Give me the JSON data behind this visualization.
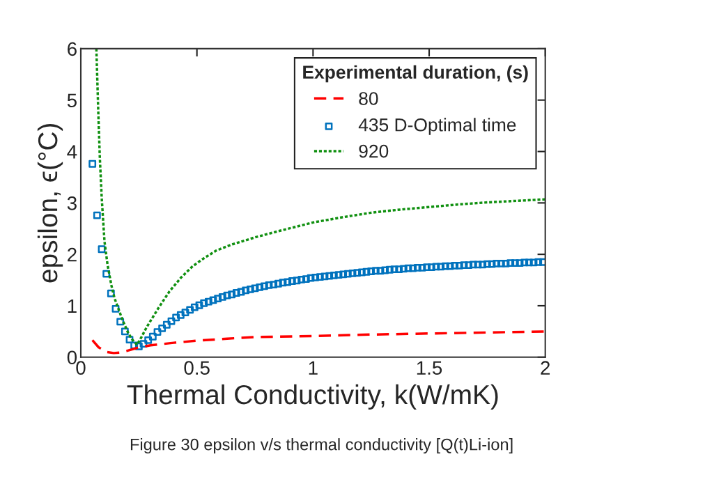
{
  "chart_data": {
    "type": "line",
    "xlabel": "Thermal Conductivity, k(W/mK)",
    "ylabel": "epsilon, ϵ(°C)",
    "legend_title": "Experimental duration, (s)",
    "legend": "top right",
    "grid": false,
    "xlim": [
      0,
      2
    ],
    "ylim": [
      0,
      6
    ],
    "xticks": [
      0,
      0.5,
      1,
      1.5,
      2
    ],
    "yticks": [
      0,
      1,
      2,
      3,
      4,
      5,
      6
    ],
    "series": [
      {
        "name": "80",
        "line_style": "dashed",
        "color": "#ff0000",
        "x": [
          0.05,
          0.077,
          0.112,
          0.142,
          0.17,
          0.197,
          0.242,
          0.3,
          0.4,
          0.5,
          0.63,
          0.75,
          1.0,
          1.25,
          1.5,
          1.75,
          2.0
        ],
        "values": [
          0.33,
          0.19,
          0.1,
          0.08,
          0.09,
          0.12,
          0.18,
          0.23,
          0.28,
          0.32,
          0.36,
          0.39,
          0.41,
          0.44,
          0.46,
          0.48,
          0.5
        ]
      },
      {
        "name": "435 D-Optimal time",
        "type": "scatter",
        "marker": "square",
        "color": "#0072bd",
        "x": [
          0.05,
          0.07,
          0.09,
          0.11,
          0.13,
          0.15,
          0.17,
          0.19,
          0.21,
          0.23,
          0.25,
          0.27,
          0.29,
          0.31,
          0.33,
          0.35,
          0.37,
          0.39,
          0.41,
          0.43,
          0.45,
          0.47,
          0.49,
          0.51,
          0.53,
          0.55,
          0.57,
          0.59,
          0.61,
          0.63,
          0.65,
          0.67,
          0.69,
          0.71,
          0.73,
          0.75,
          0.77,
          0.79,
          0.81,
          0.83,
          0.85,
          0.87,
          0.89,
          0.91,
          0.93,
          0.95,
          0.97,
          0.99,
          1.01,
          1.03,
          1.05,
          1.07,
          1.09,
          1.11,
          1.13,
          1.15,
          1.17,
          1.19,
          1.21,
          1.23,
          1.25,
          1.27,
          1.29,
          1.31,
          1.33,
          1.35,
          1.37,
          1.39,
          1.41,
          1.43,
          1.45,
          1.47,
          1.49,
          1.51,
          1.53,
          1.55,
          1.57,
          1.59,
          1.61,
          1.63,
          1.65,
          1.67,
          1.69,
          1.71,
          1.73,
          1.75,
          1.77,
          1.79,
          1.81,
          1.83,
          1.85,
          1.87,
          1.89,
          1.91,
          1.93,
          1.95,
          1.97,
          1.99
        ],
        "values": [
          3.76,
          2.76,
          2.1,
          1.62,
          1.24,
          0.94,
          0.69,
          0.5,
          0.34,
          0.23,
          0.21,
          0.26,
          0.33,
          0.4,
          0.49,
          0.56,
          0.63,
          0.7,
          0.77,
          0.82,
          0.87,
          0.92,
          0.97,
          1.01,
          1.05,
          1.08,
          1.11,
          1.14,
          1.17,
          1.2,
          1.22,
          1.25,
          1.27,
          1.3,
          1.32,
          1.34,
          1.36,
          1.38,
          1.4,
          1.41,
          1.43,
          1.45,
          1.46,
          1.48,
          1.49,
          1.51,
          1.52,
          1.54,
          1.55,
          1.56,
          1.57,
          1.58,
          1.59,
          1.6,
          1.61,
          1.62,
          1.63,
          1.64,
          1.65,
          1.66,
          1.67,
          1.68,
          1.68,
          1.69,
          1.7,
          1.71,
          1.71,
          1.72,
          1.73,
          1.73,
          1.74,
          1.74,
          1.75,
          1.75,
          1.76,
          1.76,
          1.77,
          1.77,
          1.78,
          1.78,
          1.79,
          1.79,
          1.8,
          1.8,
          1.8,
          1.81,
          1.81,
          1.82,
          1.82,
          1.82,
          1.83,
          1.83,
          1.83,
          1.84,
          1.84,
          1.84,
          1.85,
          1.85
        ]
      },
      {
        "name": "920",
        "line_style": "dotted",
        "color": "#109010",
        "x": [
          0.067,
          0.075,
          0.082,
          0.09,
          0.102,
          0.115,
          0.132,
          0.145,
          0.162,
          0.18,
          0.202,
          0.22,
          0.242,
          0.26,
          0.282,
          0.332,
          0.382,
          0.432,
          0.482,
          0.532,
          0.582,
          0.65,
          0.75,
          0.85,
          1.0,
          1.125,
          1.25,
          1.375,
          1.5,
          1.625,
          1.75,
          1.875,
          2.0
        ],
        "values": [
          6.0,
          4.8,
          3.87,
          3.1,
          2.25,
          1.8,
          1.39,
          1.15,
          0.94,
          0.72,
          0.49,
          0.35,
          0.24,
          0.38,
          0.57,
          0.94,
          1.28,
          1.55,
          1.77,
          1.93,
          2.07,
          2.19,
          2.33,
          2.45,
          2.62,
          2.72,
          2.81,
          2.87,
          2.92,
          2.97,
          3.01,
          3.04,
          3.07
        ]
      }
    ],
    "annotations": [
      "Figure 30 epsilon v/s thermal conductivity [Q(t)Li-ion]"
    ]
  }
}
